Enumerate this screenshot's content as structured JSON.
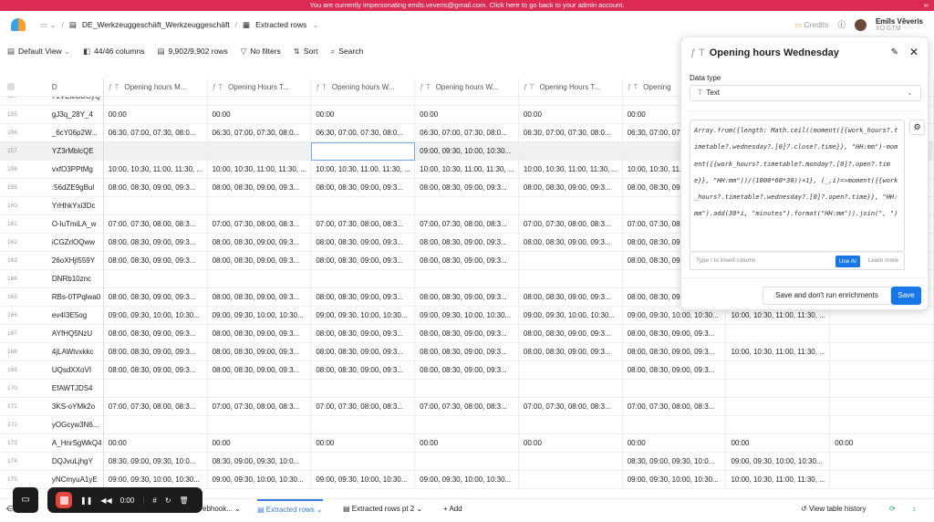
{
  "banner": {
    "text": "You are currently impersonating emils.veveris@gmail.com. Click here to go back to your admin account."
  },
  "nav": {
    "workspace": "DE_Werkzeuggeschäft_Werkzeuggeschäft",
    "table": "Extracted rows",
    "credits": "Credits",
    "user_name": "Emīls Vēveris",
    "user_sub": "XO GTM"
  },
  "toolbar": {
    "view": "Default View",
    "columns": "44/46 columns",
    "rows": "9,902/9,902 rows",
    "filters": "No filters",
    "sort": "Sort",
    "search": "Search"
  },
  "columns": [
    "D",
    "Opening hours M...",
    "Opening Hours T...",
    "Opening hours W...",
    "Opening hours W...",
    "Opening Hours T...",
    "Opening",
    "",
    ""
  ],
  "rows": [
    {
      "n": "154",
      "id": "71VEaIBBOyQ",
      "c": [
        "",
        "",
        "",
        "",
        "",
        "",
        "",
        ""
      ]
    },
    {
      "n": "155",
      "id": "gJ3q_28Y_4",
      "c": [
        "00:00",
        "00:00",
        "00:00",
        "00:00",
        "00:00",
        "00:00",
        "",
        ""
      ]
    },
    {
      "n": "156",
      "id": "_6cY06p2W...",
      "c": [
        "06:30, 07:00, 07:30, 08:0...",
        "06:30, 07:00, 07:30, 08:0...",
        "06:30, 07:00, 07:30, 08:0...",
        "06:30, 07:00, 07:30, 08:0...",
        "06:30, 07:00, 07:30, 08:0...",
        "06:30, 07:00, 07:30, 08:0...",
        "",
        ""
      ]
    },
    {
      "n": "157",
      "id": "YZ3rMblcQE",
      "c": [
        "",
        "",
        "",
        "09:00, 09:30, 10:00, 10:30...",
        "",
        "",
        "",
        ""
      ]
    },
    {
      "n": "158",
      "id": "vxfO3PPtMg",
      "c": [
        "10:00, 10:30, 11:00, 11:30, ...",
        "10:00, 10:30, 11:00, 11:30, ...",
        "10:00, 10:30, 11:00, 11:30, ...",
        "10:00, 10:30, 11:00, 11:30, ...",
        "10:00, 10:30, 11:00, 11:30, ...",
        "10:00, 10:30, 11:00, 11:30, ...",
        "",
        ""
      ]
    },
    {
      "n": "159",
      "id": ":56dZE9gBul",
      "c": [
        "08:00, 08:30, 09:00, 09:3...",
        "08:00, 08:30, 09:00, 09:3...",
        "08:00, 08:30, 09:00, 09:3...",
        "08:00, 08:30, 09:00, 09:3...",
        "08:00, 08:30, 09:00, 09:3...",
        "08:00, 08:30, 09:00, 09:3...",
        "",
        ""
      ]
    },
    {
      "n": "160",
      "id": "YrHhkYxi3Dc",
      "c": [
        "",
        "",
        "",
        "",
        "",
        "",
        "",
        ""
      ]
    },
    {
      "n": "161",
      "id": "O-luTmiLA_w",
      "c": [
        "07:00, 07:30, 08:00, 08:3...",
        "07:00, 07:30, 08:00, 08:3...",
        "07:00, 07:30, 08:00, 08:3...",
        "07:00, 07:30, 08:00, 08:3...",
        "07:00, 07:30, 08:00, 08:3...",
        "07:00, 07:30, 08:00, 08:3...",
        "",
        ""
      ]
    },
    {
      "n": "162",
      "id": "iCGZrlOQww",
      "c": [
        "08:00, 08:30, 09:00, 09:3...",
        "08:00, 08:30, 09:00, 09:3...",
        "08:00, 08:30, 09:00, 09:3...",
        "08:00, 08:30, 09:00, 09:3...",
        "08:00, 08:30, 09:00, 09:3...",
        "08:00, 08:30, 09:00, 09:3...",
        "",
        ""
      ]
    },
    {
      "n": "163",
      "id": "26oXHjI559Y",
      "c": [
        "08:00, 08:30, 09:00, 09:3...",
        "08:00, 08:30, 09:00, 09:3...",
        "08:00, 08:30, 09:00, 09:3...",
        "08:00, 08:30, 09:00, 09:3...",
        "",
        "08:00, 08:30, 09:00, 09:3...",
        "",
        ""
      ]
    },
    {
      "n": "164",
      "id": "DNRb10znc",
      "c": [
        "",
        "",
        "",
        "",
        "",
        "",
        "",
        ""
      ]
    },
    {
      "n": "165",
      "id": "RBs-0TPqlwa0",
      "c": [
        "08:00, 08:30, 09:00, 09:3...",
        "08:00, 08:30, 09:00, 09:3...",
        "08:00, 08:30, 09:00, 09:3...",
        "08:00, 08:30, 09:00, 09:3...",
        "08:00, 08:30, 09:00, 09:3...",
        "08:00, 08:30, 09:00, 09:3...",
        "",
        ""
      ]
    },
    {
      "n": "166",
      "id": "ev4I3E5og",
      "c": [
        "09:00, 09:30, 10:00, 10:30...",
        "09:00, 09:30, 10:00, 10:30...",
        "09:00, 09:30, 10:00, 10:30...",
        "09:00, 09:30, 10:00, 10:30...",
        "09:00, 09:30, 10:00, 10:30...",
        "09:00, 09:30, 10:00, 10:30...",
        "10:00, 10:30, 11:00, 11:30, ...",
        ""
      ]
    },
    {
      "n": "167",
      "id": "AYfHQ5NzU",
      "c": [
        "08:00, 08:30, 09:00, 09:3...",
        "08:00, 08:30, 09:00, 09:3...",
        "08:00, 08:30, 09:00, 09:3...",
        "08:00, 08:30, 09:00, 09:3...",
        "08:00, 08:30, 09:00, 09:3...",
        "08:00, 08:30, 09:00, 09:3...",
        "",
        ""
      ]
    },
    {
      "n": "168",
      "id": "4jLAWtvxkkc",
      "c": [
        "08:00, 08:30, 09:00, 09:3...",
        "08:00, 08:30, 09:00, 09:3...",
        "08:00, 08:30, 09:00, 09:3...",
        "08:00, 08:30, 09:00, 09:3...",
        "08:00, 08:30, 09:00, 09:3...",
        "08:00, 08:30, 09:00, 09:3...",
        "10:00, 10:30, 11:00, 11:30, ...",
        ""
      ]
    },
    {
      "n": "169",
      "id": "UQsdXXoVI",
      "c": [
        "08:00, 08:30, 09:00, 09:3...",
        "08:00, 08:30, 09:00, 09:3...",
        "08:00, 08:30, 09:00, 09:3...",
        "08:00, 08:30, 09:00, 09:3...",
        "",
        "08:00, 08:30, 09:00, 09:3...",
        "",
        ""
      ]
    },
    {
      "n": "170",
      "id": "EfAWTJDS4",
      "c": [
        "",
        "",
        "",
        "",
        "",
        "",
        "",
        ""
      ]
    },
    {
      "n": "171",
      "id": "3KS-oYMk2o",
      "c": [
        "07:00, 07:30, 08:00, 08:3...",
        "07:00, 07:30, 08:00, 08:3...",
        "07:00, 07:30, 08:00, 08:3...",
        "07:00, 07:30, 08:00, 08:3...",
        "07:00, 07:30, 08:00, 08:3...",
        "07:00, 07:30, 08:00, 08:3...",
        "",
        ""
      ]
    },
    {
      "n": "172",
      "id": "yOGcyw3N6...",
      "c": [
        "",
        "",
        "",
        "",
        "",
        "",
        "",
        ""
      ]
    },
    {
      "n": "173",
      "id": "A_HnrSgWkQ4",
      "c": [
        "00:00",
        "00:00",
        "00:00",
        "00:00",
        "00:00",
        "00:00",
        "00:00",
        "00:00"
      ]
    },
    {
      "n": "174",
      "id": "DQJvuLjhgY",
      "c": [
        "08:30, 09:00, 09:30, 10:0...",
        "08:30, 09:00, 09:30, 10:0...",
        "",
        "",
        "",
        "08:30, 09:00, 09:30, 10:0...",
        "09:00, 09:30, 10:00, 10:30...",
        ""
      ]
    },
    {
      "n": "175",
      "id": "yNCmyuA1yE",
      "c": [
        "09:00, 09:30, 10:00, 10:30...",
        "09:00, 09:30, 10:00, 10:30...",
        "09:00, 09:30, 10:00, 10:30...",
        "09:00, 09:30, 10:00, 10:30...",
        "",
        "09:00, 09:30, 10:00, 10:30...",
        "10:00, 10:30, 11:00, 11:30, ...",
        ""
      ]
    }
  ],
  "panel": {
    "title": "Opening hours Wednesday",
    "data_type_label": "Data type",
    "data_type": "Text",
    "formula": "Array.from({length: Math.ceil((moment({{work_hours?.timetable?.wednesday?.[0]?.close?.time}}, \"HH:mm\")-moment({{work_hours?.timetable?.monday?.[0]?.open?.time}}, \"HH:mm\"))/(1000*60*30))+1}, (_,i)=>moment({{work_hours?.timetable?.wednesday?.[0]?.open?.time}}, \"HH:mm\").add(30*i, \"minutes\").format(\"HH:mm\")).join(\", \")",
    "hint": "Type / to insert column",
    "use_ai": "Use AI",
    "learn_more": "Learn more",
    "save_no_run": "Save and don't run enrichments",
    "save": "Save"
  },
  "bottom": {
    "tabs": [
      "ebhook...",
      "Extracted rows",
      "Extracted rows pt 2"
    ],
    "add": "+ Add",
    "history": "View table history",
    "timer": "0:00"
  },
  "colors": {
    "banner": "#dc2a52",
    "accent": "#1877e8"
  }
}
